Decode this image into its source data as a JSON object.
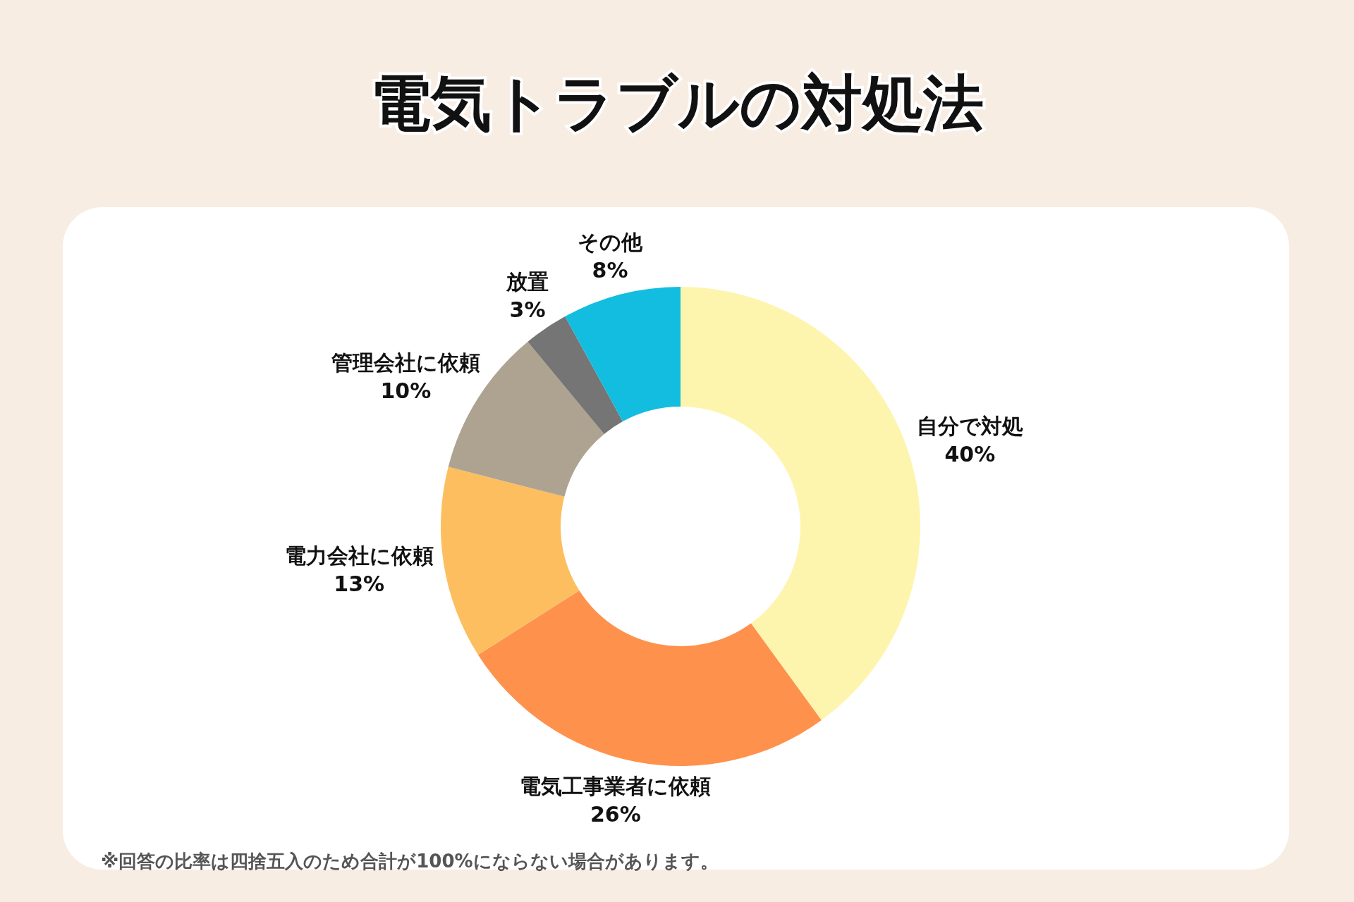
{
  "chart_data": {
    "type": "donut",
    "title": "電気トラブルの対処法",
    "categories": [
      "自分で対処",
      "電気工事業者に依頼",
      "電力会社に依頼",
      "管理会社に依頼",
      "放置",
      "その他"
    ],
    "values": [
      40,
      26,
      13,
      10,
      3,
      8
    ],
    "colors": [
      "#fdf5ae",
      "#fe914c",
      "#fdbe5f",
      "#aea390",
      "#757575",
      "#12bde0"
    ],
    "value_labels": [
      "40%",
      "26%",
      "13%",
      "10%",
      "3%",
      "8%"
    ],
    "annotations": [
      "※回答の比率は四捨五入のため合計が100%にならない場合があります。"
    ]
  }
}
